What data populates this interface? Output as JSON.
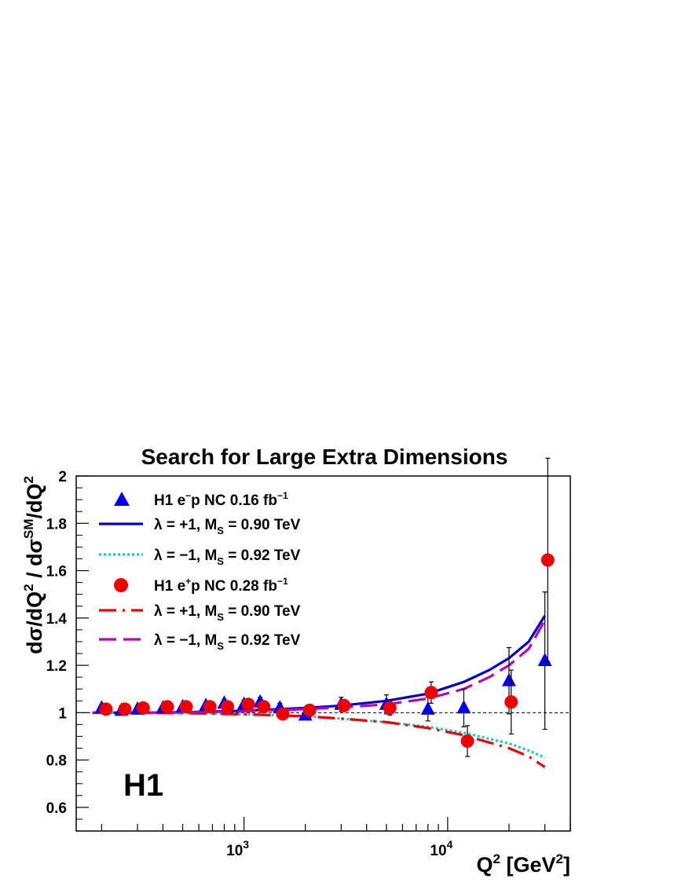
{
  "chart_data": {
    "type": "scatter",
    "title": "Search for Large Extra Dimensions",
    "xlabel": "Q² [GeV²]",
    "ylabel": "dσ/dQ² / dσ^SM/dQ²",
    "x_scale": "log",
    "xlim": [
      150,
      40000
    ],
    "ylim": [
      0.5,
      2.0
    ],
    "y_ticks": [
      {
        "v": 0.6,
        "label": "0.6"
      },
      {
        "v": 0.8,
        "label": "0.8"
      },
      {
        "v": 1.0,
        "label": "1"
      },
      {
        "v": 1.2,
        "label": "1.2"
      },
      {
        "v": 1.4,
        "label": "1.4"
      },
      {
        "v": 1.6,
        "label": "1.6"
      },
      {
        "v": 1.8,
        "label": "1.8"
      },
      {
        "v": 2.0,
        "label": "2"
      }
    ],
    "x_major_ticks": [
      {
        "v": 1000,
        "base": "10",
        "exp": "3"
      },
      {
        "v": 10000,
        "base": "10",
        "exp": "4"
      }
    ],
    "reference_line": 1.0,
    "legend_position": "top-left",
    "logo_text": "H1",
    "series": [
      {
        "legend": {
          "pre": "H1 e",
          "sup": "−",
          "mid": "p NC 0.16 fb",
          "sup2": "−1",
          "sub": ""
        },
        "kind": "points",
        "marker": "triangle",
        "color": "#0000ee",
        "points": [
          {
            "x": 200,
            "y": 1.02,
            "err": 0.01
          },
          {
            "x": 250,
            "y": 1.01,
            "err": 0.01
          },
          {
            "x": 300,
            "y": 1.015,
            "err": 0.01
          },
          {
            "x": 400,
            "y": 1.02,
            "err": 0.012
          },
          {
            "x": 500,
            "y": 1.025,
            "err": 0.012
          },
          {
            "x": 650,
            "y": 1.03,
            "err": 0.014
          },
          {
            "x": 800,
            "y": 1.04,
            "err": 0.016
          },
          {
            "x": 1000,
            "y": 1.035,
            "err": 0.018
          },
          {
            "x": 1200,
            "y": 1.045,
            "err": 0.02
          },
          {
            "x": 1500,
            "y": 1.02,
            "err": 0.02
          },
          {
            "x": 2000,
            "y": 0.99,
            "err": 0.02
          },
          {
            "x": 3000,
            "y": 1.035,
            "err": 0.03
          },
          {
            "x": 5000,
            "y": 1.035,
            "err": 0.04
          },
          {
            "x": 8000,
            "y": 1.015,
            "err": 0.05
          },
          {
            "x": 12000,
            "y": 1.02,
            "err": 0.08
          },
          {
            "x": 20000,
            "y": 1.135,
            "err": 0.14
          },
          {
            "x": 30000,
            "y": 1.22,
            "err": 0.29
          }
        ]
      },
      {
        "legend": {
          "pre": "λ = +1,   M",
          "sup": "",
          "mid": "",
          "sup2": "",
          "sub": "S",
          "post": " = 0.90 TeV"
        },
        "kind": "line",
        "style": "solid",
        "color": "#0000cc",
        "points": [
          {
            "x": 180,
            "y": 1.0
          },
          {
            "x": 300,
            "y": 1.0
          },
          {
            "x": 500,
            "y": 1.002
          },
          {
            "x": 1000,
            "y": 1.008
          },
          {
            "x": 2000,
            "y": 1.02
          },
          {
            "x": 3000,
            "y": 1.03
          },
          {
            "x": 5000,
            "y": 1.05
          },
          {
            "x": 8000,
            "y": 1.08
          },
          {
            "x": 12000,
            "y": 1.13
          },
          {
            "x": 16000,
            "y": 1.18
          },
          {
            "x": 20000,
            "y": 1.23
          },
          {
            "x": 25000,
            "y": 1.3
          },
          {
            "x": 30000,
            "y": 1.41
          }
        ]
      },
      {
        "legend": {
          "pre": "λ = −1,   M",
          "sup": "",
          "mid": "",
          "sup2": "",
          "sub": "S",
          "post": " = 0.92 TeV"
        },
        "kind": "line",
        "style": "dotted",
        "color": "#22c3c3",
        "points": [
          {
            "x": 180,
            "y": 1.0
          },
          {
            "x": 500,
            "y": 0.998
          },
          {
            "x": 1000,
            "y": 0.993
          },
          {
            "x": 2000,
            "y": 0.985
          },
          {
            "x": 3000,
            "y": 0.975
          },
          {
            "x": 5000,
            "y": 0.96
          },
          {
            "x": 8000,
            "y": 0.94
          },
          {
            "x": 12000,
            "y": 0.915
          },
          {
            "x": 20000,
            "y": 0.87
          },
          {
            "x": 25000,
            "y": 0.84
          },
          {
            "x": 30000,
            "y": 0.81
          }
        ]
      },
      {
        "legend": {
          "pre": "H1 e",
          "sup": "+",
          "mid": "p NC 0.28 fb",
          "sup2": "−1",
          "sub": ""
        },
        "kind": "points",
        "marker": "circle",
        "color": "#ee0000",
        "points": [
          {
            "x": 210,
            "y": 1.015,
            "err": 0.01
          },
          {
            "x": 260,
            "y": 1.015,
            "err": 0.01
          },
          {
            "x": 320,
            "y": 1.02,
            "err": 0.01
          },
          {
            "x": 420,
            "y": 1.025,
            "err": 0.01
          },
          {
            "x": 520,
            "y": 1.025,
            "err": 0.012
          },
          {
            "x": 680,
            "y": 1.025,
            "err": 0.012
          },
          {
            "x": 830,
            "y": 1.025,
            "err": 0.014
          },
          {
            "x": 1050,
            "y": 1.035,
            "err": 0.015
          },
          {
            "x": 1250,
            "y": 1.025,
            "err": 0.016
          },
          {
            "x": 1550,
            "y": 0.995,
            "err": 0.018
          },
          {
            "x": 2100,
            "y": 1.01,
            "err": 0.018
          },
          {
            "x": 3100,
            "y": 1.03,
            "err": 0.025
          },
          {
            "x": 5200,
            "y": 1.02,
            "err": 0.03
          },
          {
            "x": 8300,
            "y": 1.085,
            "err": 0.045
          },
          {
            "x": 12500,
            "y": 0.88,
            "err": 0.065
          },
          {
            "x": 20500,
            "y": 1.045,
            "err": 0.135
          },
          {
            "x": 31000,
            "y": 1.645,
            "err": 0.43
          }
        ]
      },
      {
        "legend": {
          "pre": "λ = +1,   M",
          "sup": "",
          "mid": "",
          "sup2": "",
          "sub": "S",
          "post": " = 0.90 TeV"
        },
        "kind": "line",
        "style": "dashdot",
        "color": "#ee0000",
        "points": [
          {
            "x": 180,
            "y": 1.0
          },
          {
            "x": 500,
            "y": 0.998
          },
          {
            "x": 1000,
            "y": 0.993
          },
          {
            "x": 2000,
            "y": 0.985
          },
          {
            "x": 3000,
            "y": 0.975
          },
          {
            "x": 5000,
            "y": 0.96
          },
          {
            "x": 8000,
            "y": 0.935
          },
          {
            "x": 12000,
            "y": 0.905
          },
          {
            "x": 20000,
            "y": 0.85
          },
          {
            "x": 25000,
            "y": 0.815
          },
          {
            "x": 30000,
            "y": 0.77
          }
        ]
      },
      {
        "legend": {
          "pre": "λ = −1,   M",
          "sup": "",
          "mid": "",
          "sup2": "",
          "sub": "S",
          "post": " = 0.92 TeV"
        },
        "kind": "line",
        "style": "longdash",
        "color": "#bb00bb",
        "points": [
          {
            "x": 180,
            "y": 1.0
          },
          {
            "x": 300,
            "y": 1.0
          },
          {
            "x": 500,
            "y": 1.001
          },
          {
            "x": 1000,
            "y": 1.006
          },
          {
            "x": 2000,
            "y": 1.015
          },
          {
            "x": 3000,
            "y": 1.022
          },
          {
            "x": 5000,
            "y": 1.035
          },
          {
            "x": 8000,
            "y": 1.06
          },
          {
            "x": 12000,
            "y": 1.1
          },
          {
            "x": 16000,
            "y": 1.15
          },
          {
            "x": 20000,
            "y": 1.2
          },
          {
            "x": 25000,
            "y": 1.27
          },
          {
            "x": 30000,
            "y": 1.39
          }
        ]
      }
    ]
  }
}
